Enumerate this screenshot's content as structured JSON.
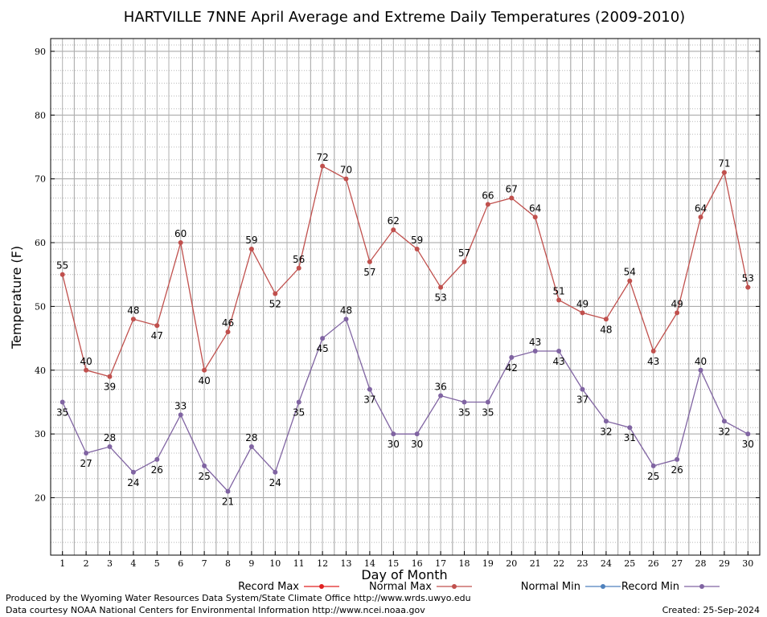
{
  "title": "HARTVILLE 7NNE April Average and Extreme Daily Temperatures (2009-2010)",
  "footer": {
    "produced_by": "Produced by the Wyoming Water Resources Data System/State Climate Office http://www.wrds.uwyo.edu",
    "data_courtesy": "Data courtesy NOAA National Centers for Environmental Information http://www.ncei.noaa.gov",
    "created": "Created: 25-Sep-2024"
  },
  "chart_data": {
    "type": "line",
    "title": "HARTVILLE 7NNE April Average and Extreme Daily Temperatures (2009-2010)",
    "xlabel": "Day of Month",
    "ylabel": "Temperature (F)",
    "xlim": [
      0.5,
      30.5
    ],
    "ylim": [
      11,
      92
    ],
    "yticks": [
      20,
      30,
      40,
      50,
      60,
      70,
      80,
      90
    ],
    "x": [
      1,
      2,
      3,
      4,
      5,
      6,
      7,
      8,
      9,
      10,
      11,
      12,
      13,
      14,
      15,
      16,
      17,
      18,
      19,
      20,
      21,
      22,
      23,
      24,
      25,
      26,
      27,
      28,
      29,
      30
    ],
    "grid": true,
    "legend_position": "bottom",
    "legend": [
      {
        "name": "Record Max",
        "color": "#e02020"
      },
      {
        "name": "Normal Max",
        "color": "#c0504d"
      },
      {
        "name": "Normal Min",
        "color": "#4f81bd"
      },
      {
        "name": "Record Min",
        "color": "#8064a2"
      }
    ],
    "series": [
      {
        "name": "Normal Max",
        "color": "#c0504d",
        "values": [
          55,
          40,
          39,
          48,
          47,
          60,
          40,
          46,
          59,
          52,
          56,
          72,
          70,
          57,
          62,
          59,
          53,
          57,
          66,
          67,
          64,
          51,
          49,
          48,
          54,
          43,
          49,
          64,
          71,
          53
        ]
      },
      {
        "name": "Record Min",
        "color": "#8064a2",
        "values": [
          35,
          27,
          28,
          24,
          26,
          33,
          25,
          21,
          28,
          24,
          35,
          45,
          48,
          37,
          30,
          30,
          36,
          35,
          35,
          42,
          43,
          43,
          37,
          32,
          31,
          25,
          26,
          40,
          32,
          30
        ]
      }
    ]
  }
}
